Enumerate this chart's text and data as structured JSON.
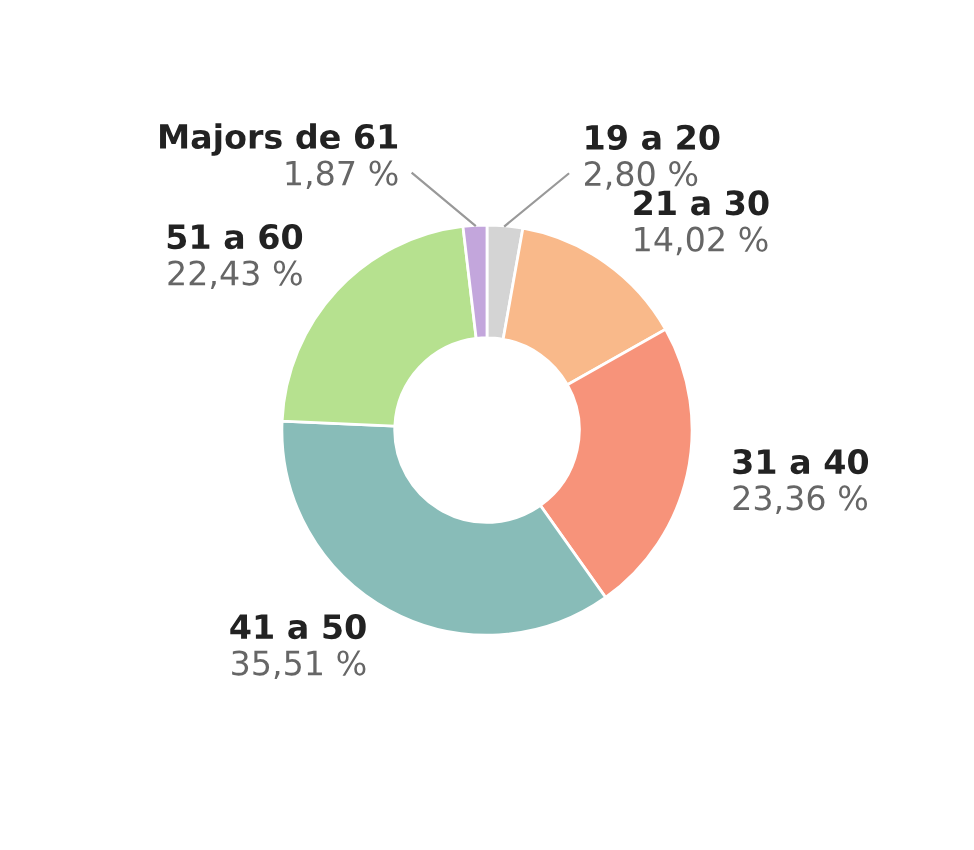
{
  "chart_data": {
    "type": "donut",
    "categories": [
      "19 a 20",
      "21 a 30",
      "31 a 40",
      "41 a 50",
      "51 a 60",
      "Majors de 61"
    ],
    "values": [
      2.8,
      14.02,
      23.36,
      35.51,
      22.43,
      1.87
    ],
    "value_labels": [
      "2,80 %",
      "14,02 %",
      "23,36 %",
      "35,51 %",
      "22,43 %",
      "1,87 %"
    ],
    "colors": [
      "#d4d4d4",
      "#f9b98a",
      "#f7937a",
      "#88bcb8",
      "#b6e18f",
      "#c3a6dc"
    ],
    "legend": false
  }
}
